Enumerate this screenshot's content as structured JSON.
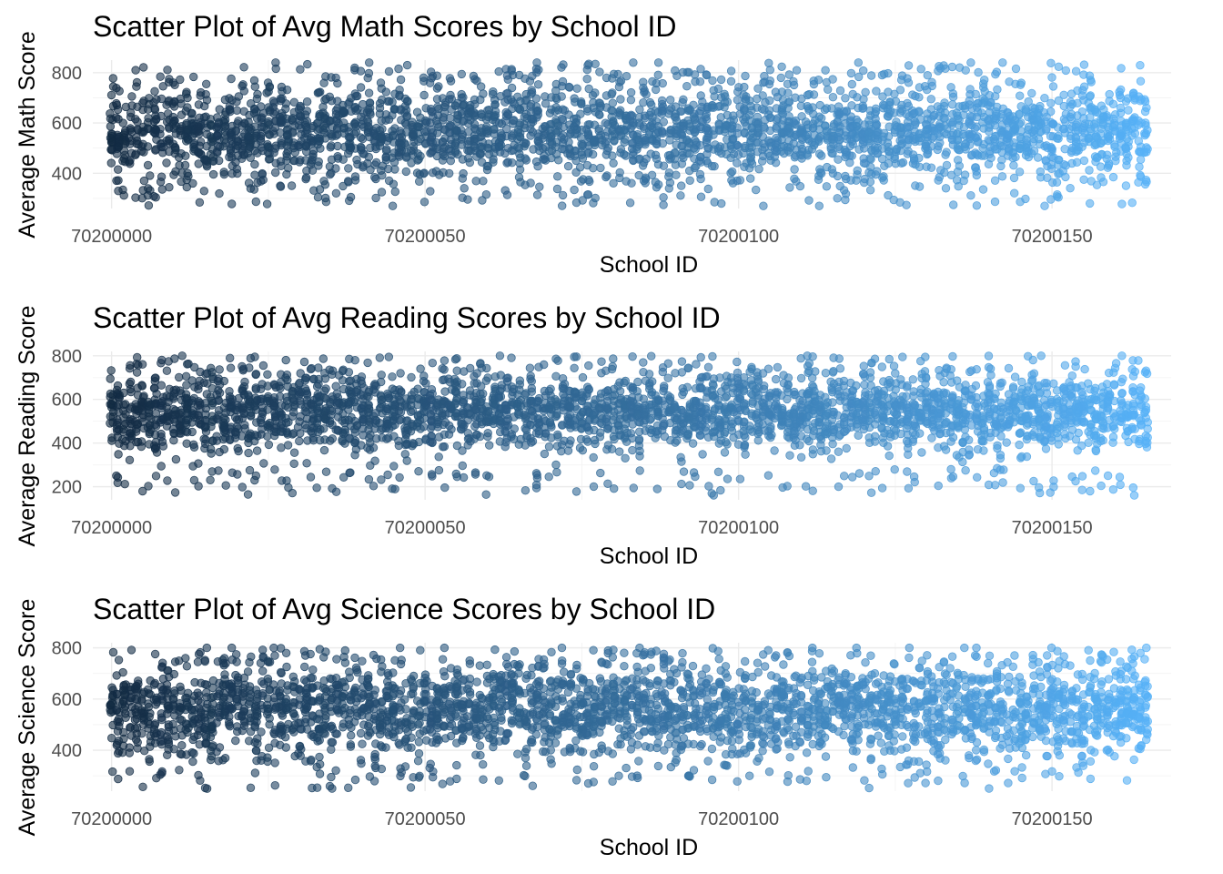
{
  "chart_data": [
    {
      "type": "scatter",
      "title": "Scatter Plot of Avg Math Scores by School ID",
      "xlabel": "School ID",
      "ylabel": "Average Math Score",
      "xlim": [
        70199997,
        70200169
      ],
      "ylim": [
        260,
        850
      ],
      "x_ticks": [
        70200000,
        70200050,
        70200100,
        70200150
      ],
      "y_ticks": [
        400,
        600,
        800
      ],
      "x_range": [
        70200000,
        70200165
      ],
      "y_center": 570,
      "y_spread": 95,
      "y_min_obs": 270,
      "y_max_obs": 840,
      "color_low": "#132b43",
      "color_high": "#56b1f7",
      "grid": true
    },
    {
      "type": "scatter",
      "title": "Scatter Plot of Avg Reading Scores by School ID",
      "xlabel": "School ID",
      "ylabel": "Average Reading Score",
      "xlim": [
        70199997,
        70200169
      ],
      "ylim": [
        140,
        820
      ],
      "x_ticks": [
        70200000,
        70200050,
        70200100,
        70200150
      ],
      "y_ticks": [
        200,
        400,
        600,
        800
      ],
      "x_range": [
        70200000,
        70200165
      ],
      "y_center": 540,
      "y_spread": 90,
      "y_min_obs": 160,
      "y_max_obs": 800,
      "color_low": "#132b43",
      "color_high": "#56b1f7",
      "grid": true
    },
    {
      "type": "scatter",
      "title": "Scatter Plot of Avg Science Scores by School ID",
      "xlabel": "School ID",
      "ylabel": "Average Science Score",
      "xlim": [
        70199997,
        70200169
      ],
      "ylim": [
        240,
        820
      ],
      "x_ticks": [
        70200000,
        70200050,
        70200100,
        70200150
      ],
      "y_ticks": [
        400,
        600,
        800
      ],
      "x_range": [
        70200000,
        70200165
      ],
      "y_center": 560,
      "y_spread": 90,
      "y_min_obs": 250,
      "y_max_obs": 800,
      "color_low": "#132b43",
      "color_high": "#56b1f7",
      "grid": true
    }
  ]
}
